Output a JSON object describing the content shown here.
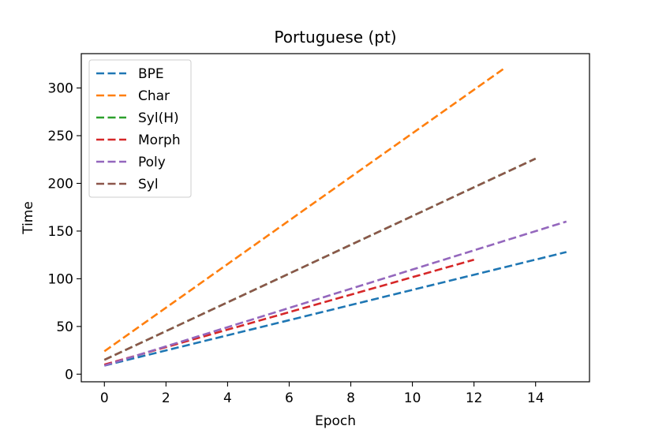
{
  "chart_data": {
    "type": "line",
    "title": "Portuguese (pt)",
    "xlabel": "Epoch",
    "ylabel": "Time",
    "xlim": [
      -0.75,
      15.75
    ],
    "ylim": [
      -8,
      336
    ],
    "xticks": [
      0,
      2,
      4,
      6,
      8,
      10,
      12,
      14
    ],
    "yticks": [
      0,
      50,
      100,
      150,
      200,
      250,
      300
    ],
    "grid": false,
    "legend_position": "top-left",
    "line_style": "dashed",
    "series": [
      {
        "name": "BPE",
        "color": "#1f77b4",
        "x": [
          0,
          15
        ],
        "y": [
          9,
          128
        ]
      },
      {
        "name": "Char",
        "color": "#ff7f0e",
        "x": [
          0,
          13
        ],
        "y": [
          24,
          321
        ]
      },
      {
        "name": "Syl(H)",
        "color": "#2ca02c",
        "x": [
          0,
          14
        ],
        "y": [
          15,
          226
        ]
      },
      {
        "name": "Morph",
        "color": "#d62728",
        "x": [
          0,
          12
        ],
        "y": [
          10,
          120
        ]
      },
      {
        "name": "Poly",
        "color": "#9467bd",
        "x": [
          0,
          15
        ],
        "y": [
          9,
          160
        ]
      },
      {
        "name": "Syl",
        "color": "#8c564b",
        "x": [
          0,
          14
        ],
        "y": [
          15,
          226
        ]
      }
    ]
  }
}
